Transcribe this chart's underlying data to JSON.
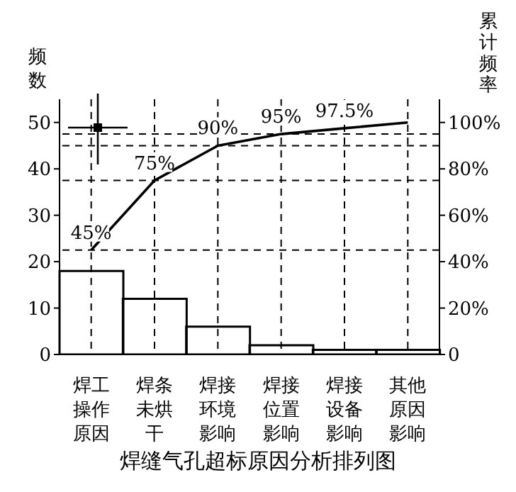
{
  "chart_data": {
    "type": "bar",
    "title": "焊缝气孔超标原因分析排列图",
    "ylabel": "频数",
    "y2label": "累计频率",
    "categories": [
      "焊工操作原因",
      "焊条未烘干",
      "焊接环境影响",
      "焊接位置影响",
      "焊接设备影响",
      "其他原因影响"
    ],
    "series": [
      {
        "color": "#000000",
        "values": [
          18,
          12,
          6,
          2,
          1,
          1
        ]
      },
      {
        "type": "line",
        "axis": "y2",
        "color": "#000000",
        "values": [
          45,
          75,
          90,
          95,
          97.5,
          100
        ],
        "value_labels": [
          "45%",
          "75%",
          "90%",
          "95%",
          "97.5%",
          null
        ]
      }
    ],
    "ylim": [
      0,
      55
    ],
    "yticks": [
      0,
      10,
      20,
      30,
      40,
      50
    ],
    "y2lim": [
      0,
      110
    ],
    "y2ticks": [
      0,
      {
        "value": 20,
        "label": "20%"
      },
      {
        "value": 40,
        "label": "40%"
      },
      {
        "value": 60,
        "label": "60%"
      },
      {
        "value": 80,
        "label": "80%"
      },
      {
        "value": 100,
        "label": "100%"
      }
    ],
    "ref_lines": [
      {
        "axis": "y2",
        "value": 45,
        "line_style": "dashed"
      },
      {
        "axis": "y2",
        "value": 75,
        "line_style": "dashed"
      },
      {
        "axis": "y2",
        "value": 90,
        "line_style": "dashed"
      },
      {
        "axis": "y2",
        "value": 95,
        "line_style": "dashed"
      }
    ],
    "marker": "none",
    "grid": "x",
    "legend": false
  }
}
